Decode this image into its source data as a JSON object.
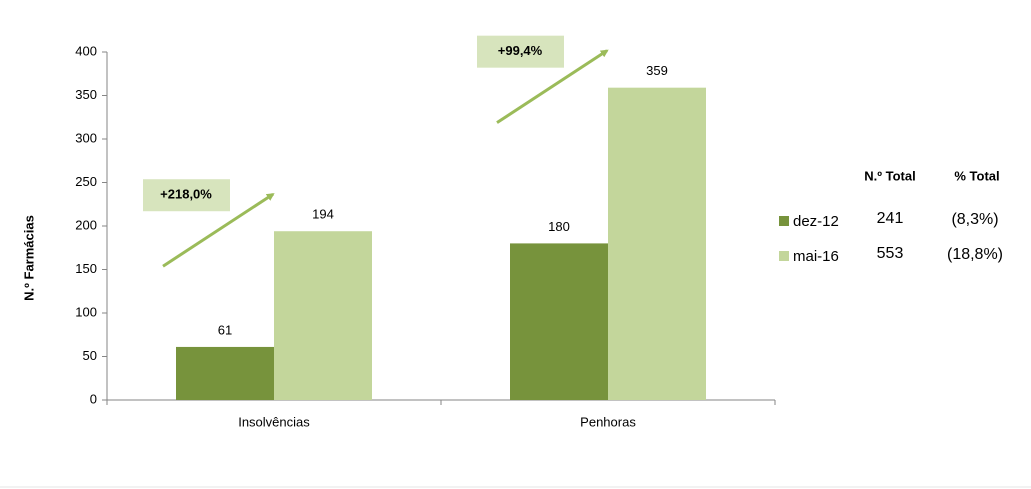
{
  "chart_data": {
    "type": "bar",
    "y_label": "N.º Farmácias",
    "categories": [
      "Insolvências",
      "Penhoras"
    ],
    "series": [
      {
        "name": "dez-12",
        "color": "#77933c",
        "values": [
          61,
          180
        ],
        "total": 241,
        "share_label": "(8,3%)"
      },
      {
        "name": "mai-16",
        "color": "#c3d69b",
        "values": [
          194,
          359
        ],
        "total": 553,
        "share_label": "(18,8%)"
      }
    ],
    "ylim": [
      0,
      400
    ],
    "yticks": [
      0,
      50,
      100,
      150,
      200,
      250,
      300,
      350,
      400
    ],
    "legend_headers": [
      "N.º Total",
      "% Total"
    ],
    "annotations": [
      "+218,0%",
      "+99,4%"
    ],
    "annotation_color": "#9bbb59"
  }
}
